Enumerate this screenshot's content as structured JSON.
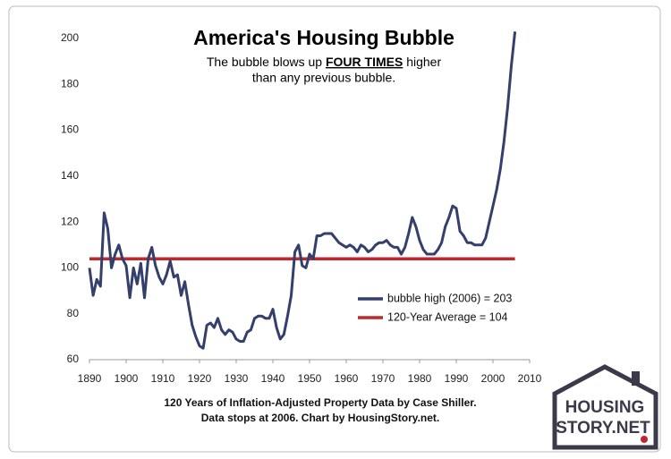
{
  "chart_data": {
    "type": "line",
    "title": "America's Housing Bubble",
    "subtitle": {
      "before": "The bubble blows up ",
      "emphasis": "FOUR TIMES",
      "after": " higher",
      "line2": "than any previous bubble."
    },
    "footnote": [
      "120 Years of Inflation-Adjusted Property Data by Case Shiller.",
      "Data stops at 2006. Chart by HousingStory.net."
    ],
    "logo": [
      "HOUSING",
      "STORY.NET"
    ],
    "xlim": [
      1890,
      2010
    ],
    "xticks": [
      1890,
      1900,
      1910,
      1920,
      1930,
      1940,
      1950,
      1960,
      1970,
      1980,
      1990,
      2000,
      2010
    ],
    "ylim": [
      60,
      200
    ],
    "yticks": [
      60,
      80,
      100,
      120,
      140,
      160,
      180,
      200
    ],
    "grid": false,
    "legend": "lower right",
    "series": [
      {
        "name": "bubble high (2006) = 203",
        "color": "#343f6b",
        "x": [
          1890,
          1891,
          1892,
          1893,
          1894,
          1895,
          1896,
          1897,
          1898,
          1899,
          1900,
          1901,
          1902,
          1903,
          1904,
          1905,
          1906,
          1907,
          1908,
          1909,
          1910,
          1911,
          1912,
          1913,
          1914,
          1915,
          1916,
          1917,
          1918,
          1919,
          1920,
          1921,
          1922,
          1923,
          1924,
          1925,
          1926,
          1927,
          1928,
          1929,
          1930,
          1931,
          1932,
          1933,
          1934,
          1935,
          1936,
          1937,
          1938,
          1939,
          1940,
          1941,
          1942,
          1943,
          1944,
          1945,
          1946,
          1947,
          1948,
          1949,
          1950,
          1951,
          1952,
          1953,
          1954,
          1955,
          1956,
          1957,
          1958,
          1959,
          1960,
          1961,
          1962,
          1963,
          1964,
          1965,
          1966,
          1967,
          1968,
          1969,
          1970,
          1971,
          1972,
          1973,
          1974,
          1975,
          1976,
          1977,
          1978,
          1979,
          1980,
          1981,
          1982,
          1983,
          1984,
          1985,
          1986,
          1987,
          1988,
          1989,
          1990,
          1991,
          1992,
          1993,
          1994,
          1995,
          1996,
          1997,
          1998,
          1999,
          2000,
          2001,
          2002,
          2003,
          2004,
          2005,
          2006
        ],
        "values": [
          100,
          88,
          95,
          92,
          124,
          117,
          100,
          106,
          110,
          104,
          101,
          87,
          100,
          93,
          102,
          87,
          104,
          109,
          101,
          96,
          93,
          97,
          103,
          96,
          97,
          88,
          94,
          84,
          75,
          70,
          66,
          65,
          75,
          76,
          74,
          78,
          73,
          71,
          73,
          72,
          69,
          68,
          68,
          72,
          73,
          78,
          79,
          79,
          78,
          78,
          82,
          74,
          69,
          71,
          79,
          88,
          107,
          110,
          101,
          100,
          106,
          104,
          114,
          114,
          115,
          115,
          115,
          113,
          111,
          110,
          109,
          110,
          109,
          107,
          110,
          109,
          107,
          108,
          110,
          111,
          111,
          112,
          110,
          109,
          109,
          106,
          109,
          115,
          122,
          118,
          112,
          108,
          106,
          106,
          106,
          108,
          111,
          118,
          122,
          127,
          126,
          116,
          114,
          111,
          111,
          110,
          110,
          110,
          113,
          120,
          127,
          134,
          143,
          155,
          170,
          188,
          203
        ]
      },
      {
        "name": "120-Year Average = 104",
        "color": "#c0282d",
        "x": [
          1890,
          2006
        ],
        "values": [
          104,
          104
        ]
      }
    ]
  }
}
